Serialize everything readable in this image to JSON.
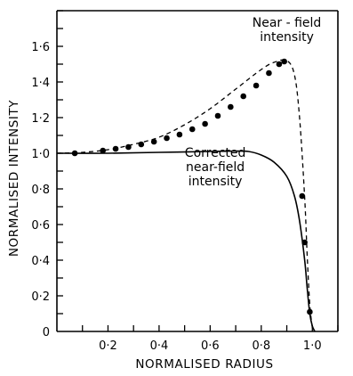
{
  "chart_data": {
    "type": "line",
    "xlabel": "NORMALISED RADIUS",
    "ylabel": "NORMALISED INTENSITY",
    "xlim": [
      0,
      1.1
    ],
    "ylim": [
      0,
      1.8
    ],
    "x_ticks": [
      {
        "value": 0.2,
        "label": "0·2"
      },
      {
        "value": 0.4,
        "label": "0·4"
      },
      {
        "value": 0.6,
        "label": "0·6"
      },
      {
        "value": 0.8,
        "label": "0·8"
      },
      {
        "value": 1.0,
        "label": "1·0"
      }
    ],
    "y_ticks": [
      {
        "value": 0,
        "label": "0"
      },
      {
        "value": 0.2,
        "label": "0·2"
      },
      {
        "value": 0.4,
        "label": "0·4"
      },
      {
        "value": 0.6,
        "label": "0·6"
      },
      {
        "value": 0.8,
        "label": "0·8"
      },
      {
        "value": 1.0,
        "label": "1·0"
      },
      {
        "value": 1.2,
        "label": "1·2"
      },
      {
        "value": 1.4,
        "label": "1·4"
      },
      {
        "value": 1.6,
        "label": "1·6"
      }
    ],
    "grid": false,
    "series": [
      {
        "style": "dashed",
        "color": "#000000",
        "x": [
          0.0,
          0.1,
          0.2,
          0.3,
          0.4,
          0.5,
          0.6,
          0.7,
          0.8,
          0.85,
          0.9,
          0.93,
          0.95,
          0.97,
          0.98,
          0.99,
          1.0
        ],
        "y": [
          1.0,
          1.005,
          1.02,
          1.05,
          1.09,
          1.16,
          1.25,
          1.36,
          1.47,
          1.51,
          1.52,
          1.44,
          1.2,
          0.75,
          0.42,
          0.15,
          0.02
        ]
      },
      {
        "style": "solid",
        "color": "#000000",
        "x": [
          0.0,
          0.2,
          0.4,
          0.6,
          0.7,
          0.75,
          0.8,
          0.85,
          0.9,
          0.93,
          0.95,
          0.97,
          0.98,
          0.99,
          1.0,
          1.01
        ],
        "y": [
          1.0,
          1.0,
          1.005,
          1.01,
          1.012,
          1.01,
          0.99,
          0.95,
          0.87,
          0.76,
          0.62,
          0.4,
          0.24,
          0.1,
          0.03,
          0.0
        ]
      },
      {
        "style": "markers",
        "color": "#000000",
        "x": [
          0.07,
          0.18,
          0.23,
          0.28,
          0.33,
          0.38,
          0.43,
          0.48,
          0.53,
          0.58,
          0.63,
          0.68,
          0.73,
          0.78,
          0.83,
          0.87,
          0.89,
          0.96,
          0.97,
          0.99
        ],
        "y": [
          1.0,
          1.015,
          1.025,
          1.035,
          1.05,
          1.065,
          1.085,
          1.105,
          1.135,
          1.165,
          1.21,
          1.26,
          1.32,
          1.38,
          1.45,
          1.5,
          1.515,
          0.76,
          0.5,
          0.11
        ]
      }
    ],
    "annotations": [
      {
        "lines": [
          "Near - field",
          "intensity"
        ],
        "x": 0.9,
        "y": 1.71
      },
      {
        "lines": [
          "Corrected",
          "near-field",
          "intensity"
        ],
        "x": 0.62,
        "y": 0.98
      }
    ]
  }
}
